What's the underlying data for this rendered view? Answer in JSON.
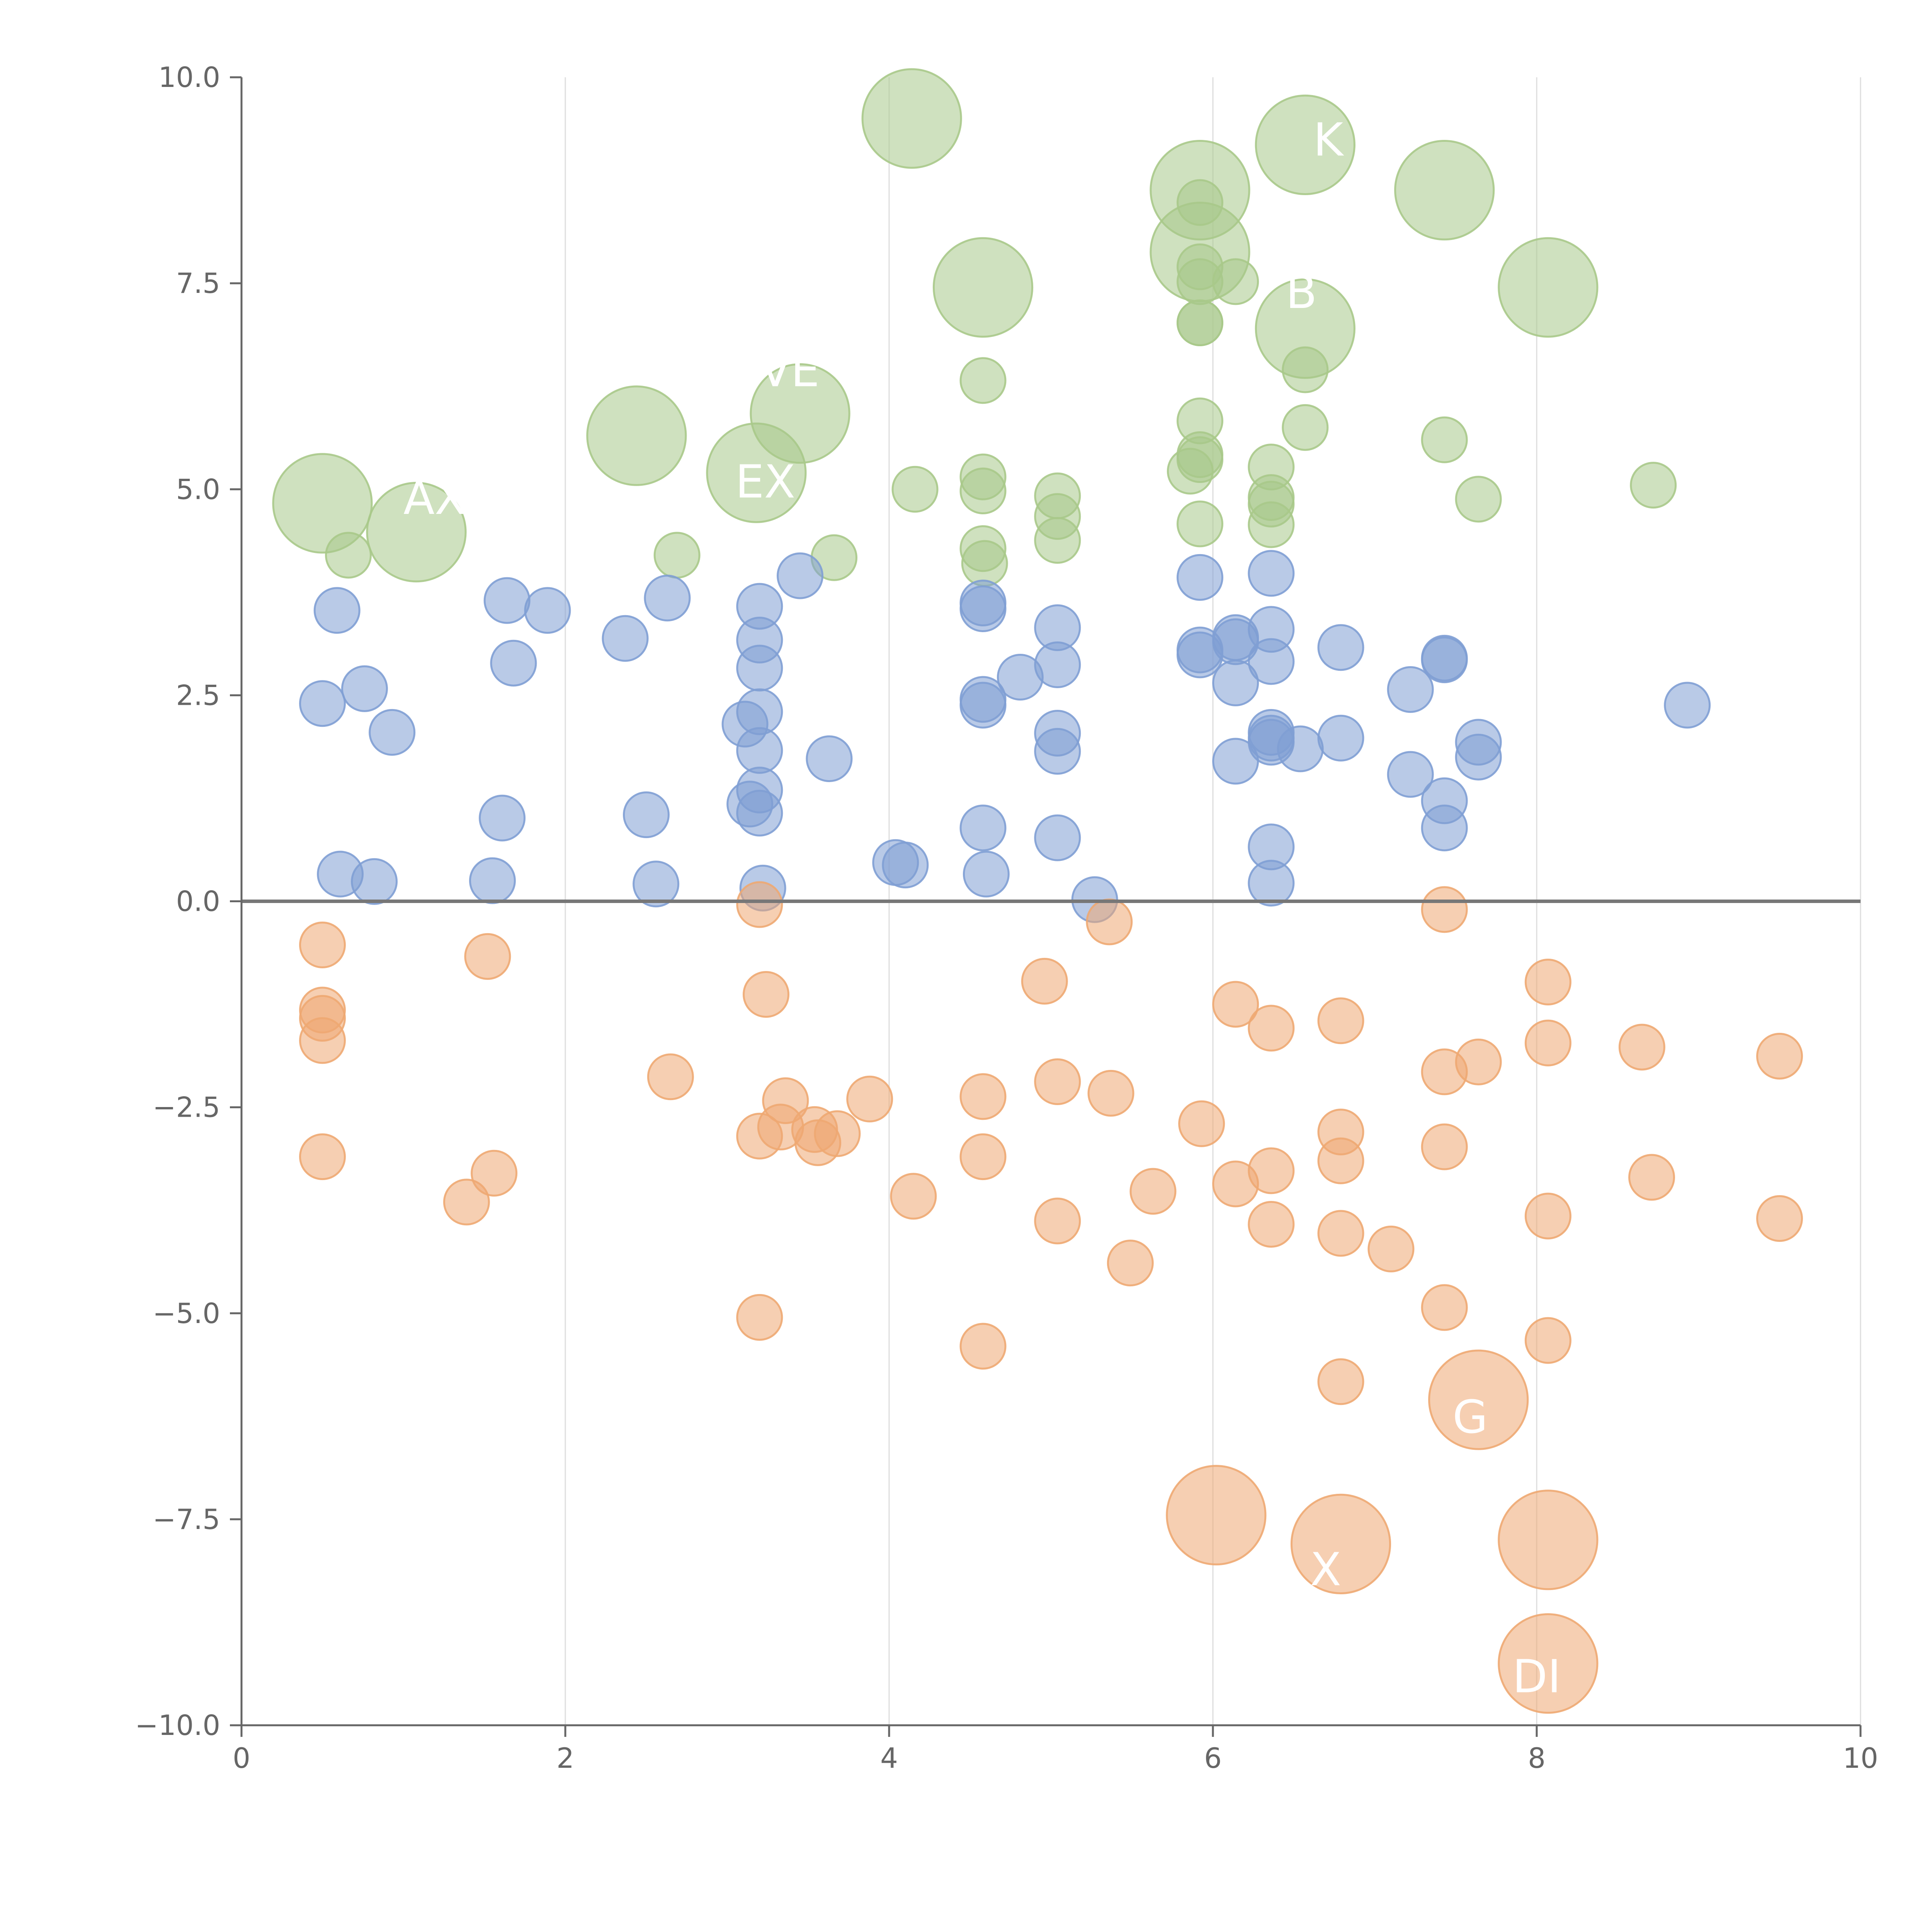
{
  "chart_data": {
    "type": "scatter",
    "title": "",
    "xlabel": "",
    "ylabel": "",
    "xlim": [
      0,
      10
    ],
    "ylim": [
      -10,
      10
    ],
    "x_ticks": [
      "0",
      "2",
      "4",
      "6",
      "8",
      "10"
    ],
    "y_ticks": [
      "−10.0",
      "−7.5",
      "−5.0",
      "−2.5",
      "0.0",
      "2.5",
      "5.0",
      "7.5",
      "10.0"
    ],
    "x_tick_values": [
      0,
      2,
      4,
      6,
      8,
      10
    ],
    "y_tick_values": [
      -10,
      -7.5,
      -5,
      -2.5,
      0,
      2.5,
      5,
      7.5,
      10
    ],
    "vertical_grid": true,
    "horizontal_grid": false,
    "zero_line": true,
    "bubble_size_units": "radius relative to small bubble = 1",
    "colors": {
      "green": "#a8c98a",
      "blue": "#7f9fd4",
      "orange": "#eea872",
      "axis": "#666666",
      "grid": "#dddddd",
      "zero_line": "#777777"
    },
    "series": [
      {
        "color": "green",
        "points": [
          [
            0.5,
            4.83,
            2.2
          ],
          [
            1.08,
            4.48,
            2.2
          ],
          [
            0.66,
            4.2,
            1
          ],
          [
            2.44,
            5.65,
            2.2
          ],
          [
            2.69,
            4.2,
            1
          ],
          [
            3.18,
            5.2,
            2.2
          ],
          [
            3.45,
            5.92,
            2.2
          ],
          [
            3.66,
            4.17,
            1
          ],
          [
            4.14,
            9.5,
            2.2
          ],
          [
            4.16,
            5.0,
            1
          ],
          [
            4.58,
            7.45,
            2.2
          ],
          [
            4.58,
            6.32,
            1
          ],
          [
            4.58,
            5.15,
            1
          ],
          [
            4.58,
            4.98,
            1
          ],
          [
            4.58,
            4.28,
            1
          ],
          [
            4.59,
            4.1,
            1
          ],
          [
            5.04,
            4.92,
            1
          ],
          [
            5.04,
            4.67,
            1
          ],
          [
            5.04,
            4.38,
            1
          ],
          [
            5.92,
            8.63,
            2.2
          ],
          [
            5.92,
            7.88,
            2.2
          ],
          [
            5.92,
            8.48,
            1
          ],
          [
            5.92,
            7.7,
            1
          ],
          [
            5.92,
            7.52,
            1
          ],
          [
            6.14,
            7.52,
            1
          ],
          [
            5.92,
            7.02,
            1
          ],
          [
            5.92,
            7.02,
            1
          ],
          [
            5.92,
            5.83,
            1
          ],
          [
            5.92,
            5.42,
            1
          ],
          [
            5.92,
            5.36,
            1
          ],
          [
            5.86,
            5.22,
            1
          ],
          [
            5.92,
            4.58,
            1
          ],
          [
            6.36,
            5.27,
            1
          ],
          [
            6.36,
            4.9,
            1
          ],
          [
            6.36,
            4.82,
            1
          ],
          [
            6.36,
            4.57,
            1
          ],
          [
            6.57,
            9.18,
            2.2
          ],
          [
            6.57,
            6.95,
            2.2
          ],
          [
            6.57,
            6.45,
            1
          ],
          [
            6.57,
            5.75,
            1
          ],
          [
            7.43,
            8.63,
            2.2
          ],
          [
            7.43,
            5.6,
            1
          ],
          [
            7.64,
            4.88,
            1
          ],
          [
            8.07,
            7.45,
            2.2
          ],
          [
            8.72,
            5.05,
            1
          ]
        ]
      },
      {
        "color": "blue",
        "points": [
          [
            0.59,
            3.53,
            1
          ],
          [
            0.5,
            2.4,
            1
          ],
          [
            0.76,
            2.58,
            1
          ],
          [
            0.93,
            2.05,
            1
          ],
          [
            0.61,
            0.33,
            1
          ],
          [
            0.82,
            0.24,
            1
          ],
          [
            1.64,
            3.65,
            1
          ],
          [
            1.68,
            2.89,
            1
          ],
          [
            1.89,
            3.53,
            1
          ],
          [
            1.61,
            1.01,
            1
          ],
          [
            1.55,
            0.25,
            1
          ],
          [
            2.37,
            3.19,
            1
          ],
          [
            2.63,
            3.68,
            1
          ],
          [
            2.5,
            1.05,
            1
          ],
          [
            2.56,
            0.21,
            1
          ],
          [
            3.2,
            3.58,
            1
          ],
          [
            3.2,
            3.17,
            1
          ],
          [
            3.2,
            2.83,
            1
          ],
          [
            3.2,
            2.3,
            1
          ],
          [
            3.11,
            2.15,
            1
          ],
          [
            3.2,
            1.83,
            1
          ],
          [
            3.2,
            1.35,
            1
          ],
          [
            3.14,
            1.18,
            1
          ],
          [
            3.2,
            1.07,
            1
          ],
          [
            3.22,
            0.16,
            1
          ],
          [
            3.45,
            3.95,
            1
          ],
          [
            3.63,
            1.73,
            1
          ],
          [
            4.04,
            0.47,
            1
          ],
          [
            4.1,
            0.44,
            1
          ],
          [
            4.58,
            3.62,
            1
          ],
          [
            4.58,
            3.55,
            1
          ],
          [
            4.58,
            2.45,
            1
          ],
          [
            4.58,
            2.38,
            1
          ],
          [
            4.81,
            2.72,
            1
          ],
          [
            4.58,
            0.89,
            1
          ],
          [
            4.6,
            0.33,
            1
          ],
          [
            5.04,
            3.32,
            1
          ],
          [
            5.04,
            2.87,
            1
          ],
          [
            5.04,
            2.04,
            1
          ],
          [
            5.04,
            1.82,
            1
          ],
          [
            5.04,
            0.77,
            1
          ],
          [
            5.27,
            0.02,
            1
          ],
          [
            5.92,
            3.93,
            1
          ],
          [
            5.92,
            3.05,
            1
          ],
          [
            5.92,
            2.99,
            1
          ],
          [
            6.14,
            3.2,
            1
          ],
          [
            6.14,
            3.15,
            1
          ],
          [
            6.14,
            2.65,
            1
          ],
          [
            6.14,
            1.7,
            1
          ],
          [
            6.36,
            3.98,
            1
          ],
          [
            6.36,
            3.3,
            1
          ],
          [
            6.36,
            2.91,
            1
          ],
          [
            6.36,
            2.05,
            1
          ],
          [
            6.36,
            1.98,
            1
          ],
          [
            6.36,
            1.93,
            1
          ],
          [
            6.54,
            1.85,
            1
          ],
          [
            6.36,
            0.66,
            1
          ],
          [
            6.36,
            0.22,
            1
          ],
          [
            6.79,
            3.08,
            1
          ],
          [
            6.79,
            1.98,
            1
          ],
          [
            7.22,
            2.57,
            1
          ],
          [
            7.22,
            1.54,
            1
          ],
          [
            7.43,
            2.95,
            1
          ],
          [
            7.43,
            2.93,
            1
          ],
          [
            7.43,
            1.22,
            1
          ],
          [
            7.43,
            0.89,
            1
          ],
          [
            7.64,
            1.93,
            1
          ],
          [
            7.64,
            1.75,
            1
          ],
          [
            8.93,
            2.38,
            1
          ]
        ]
      },
      {
        "color": "orange",
        "points": [
          [
            0.5,
            -0.53,
            1
          ],
          [
            0.5,
            -1.32,
            1
          ],
          [
            0.5,
            -1.42,
            1
          ],
          [
            0.5,
            -1.69,
            1
          ],
          [
            0.5,
            -3.1,
            1
          ],
          [
            1.52,
            -0.67,
            1
          ],
          [
            1.39,
            -3.65,
            1
          ],
          [
            1.56,
            -3.3,
            1
          ],
          [
            2.65,
            -2.13,
            1
          ],
          [
            3.2,
            -0.04,
            1
          ],
          [
            3.24,
            -1.13,
            1
          ],
          [
            3.36,
            -2.42,
            1
          ],
          [
            3.2,
            -2.85,
            1
          ],
          [
            3.33,
            -2.74,
            1
          ],
          [
            3.54,
            -2.77,
            1
          ],
          [
            3.56,
            -2.93,
            1
          ],
          [
            3.68,
            -2.82,
            1
          ],
          [
            3.88,
            -2.4,
            1
          ],
          [
            3.2,
            -5.05,
            1
          ],
          [
            4.15,
            -3.58,
            1
          ],
          [
            4.58,
            -2.37,
            1
          ],
          [
            4.58,
            -3.1,
            1
          ],
          [
            4.58,
            -5.4,
            1
          ],
          [
            4.96,
            -0.97,
            1
          ],
          [
            5.04,
            -2.19,
            1
          ],
          [
            5.04,
            -3.88,
            1
          ],
          [
            5.36,
            -0.25,
            1
          ],
          [
            5.37,
            -2.33,
            1
          ],
          [
            5.49,
            -4.39,
            1
          ],
          [
            5.63,
            -3.52,
            1
          ],
          [
            5.93,
            -2.7,
            1
          ],
          [
            6.02,
            -7.45,
            2.2
          ],
          [
            6.14,
            -1.25,
            1
          ],
          [
            6.14,
            -3.43,
            1
          ],
          [
            6.36,
            -1.54,
            1
          ],
          [
            6.36,
            -3.27,
            1
          ],
          [
            6.36,
            -3.92,
            1
          ],
          [
            6.79,
            -1.45,
            1
          ],
          [
            6.79,
            -2.8,
            1
          ],
          [
            6.79,
            -3.15,
            1
          ],
          [
            6.79,
            -4.03,
            1
          ],
          [
            6.79,
            -5.83,
            1
          ],
          [
            6.79,
            -7.8,
            2.2
          ],
          [
            7.1,
            -4.22,
            1
          ],
          [
            7.43,
            -0.1,
            1
          ],
          [
            7.43,
            -2.07,
            1
          ],
          [
            7.43,
            -2.98,
            1
          ],
          [
            7.43,
            -4.93,
            1
          ],
          [
            7.64,
            -1.95,
            1
          ],
          [
            7.64,
            -6.05,
            2.2
          ],
          [
            8.07,
            -0.98,
            1
          ],
          [
            8.07,
            -1.72,
            1
          ],
          [
            8.07,
            -3.82,
            1
          ],
          [
            8.07,
            -5.33,
            1
          ],
          [
            8.07,
            -7.75,
            2.2
          ],
          [
            8.07,
            -9.25,
            2.2
          ],
          [
            8.65,
            -1.77,
            1
          ],
          [
            8.71,
            -3.35,
            1
          ],
          [
            9.5,
            -1.88,
            1
          ],
          [
            9.5,
            -3.85,
            1
          ]
        ]
      }
    ],
    "annotations": [
      {
        "text": "AX",
        "x": 1.0,
        "y": 4.7,
        "color": "#ffffff"
      },
      {
        "text": "VE",
        "x": 3.2,
        "y": 6.25,
        "color": "#ffffff"
      },
      {
        "text": "EX",
        "x": 3.05,
        "y": 4.9,
        "color": "#ffffff"
      },
      {
        "text": "K",
        "x": 6.62,
        "y": 9.05,
        "color": "#ffffff"
      },
      {
        "text": "B",
        "x": 6.45,
        "y": 7.2,
        "color": "#ffffff"
      },
      {
        "text": "G",
        "x": 7.48,
        "y": -6.45,
        "color": "#ffffff"
      },
      {
        "text": "X",
        "x": 6.6,
        "y": -8.3,
        "color": "#ffffff"
      },
      {
        "text": "DI",
        "x": 7.85,
        "y": -9.6,
        "color": "#ffffff"
      }
    ]
  }
}
